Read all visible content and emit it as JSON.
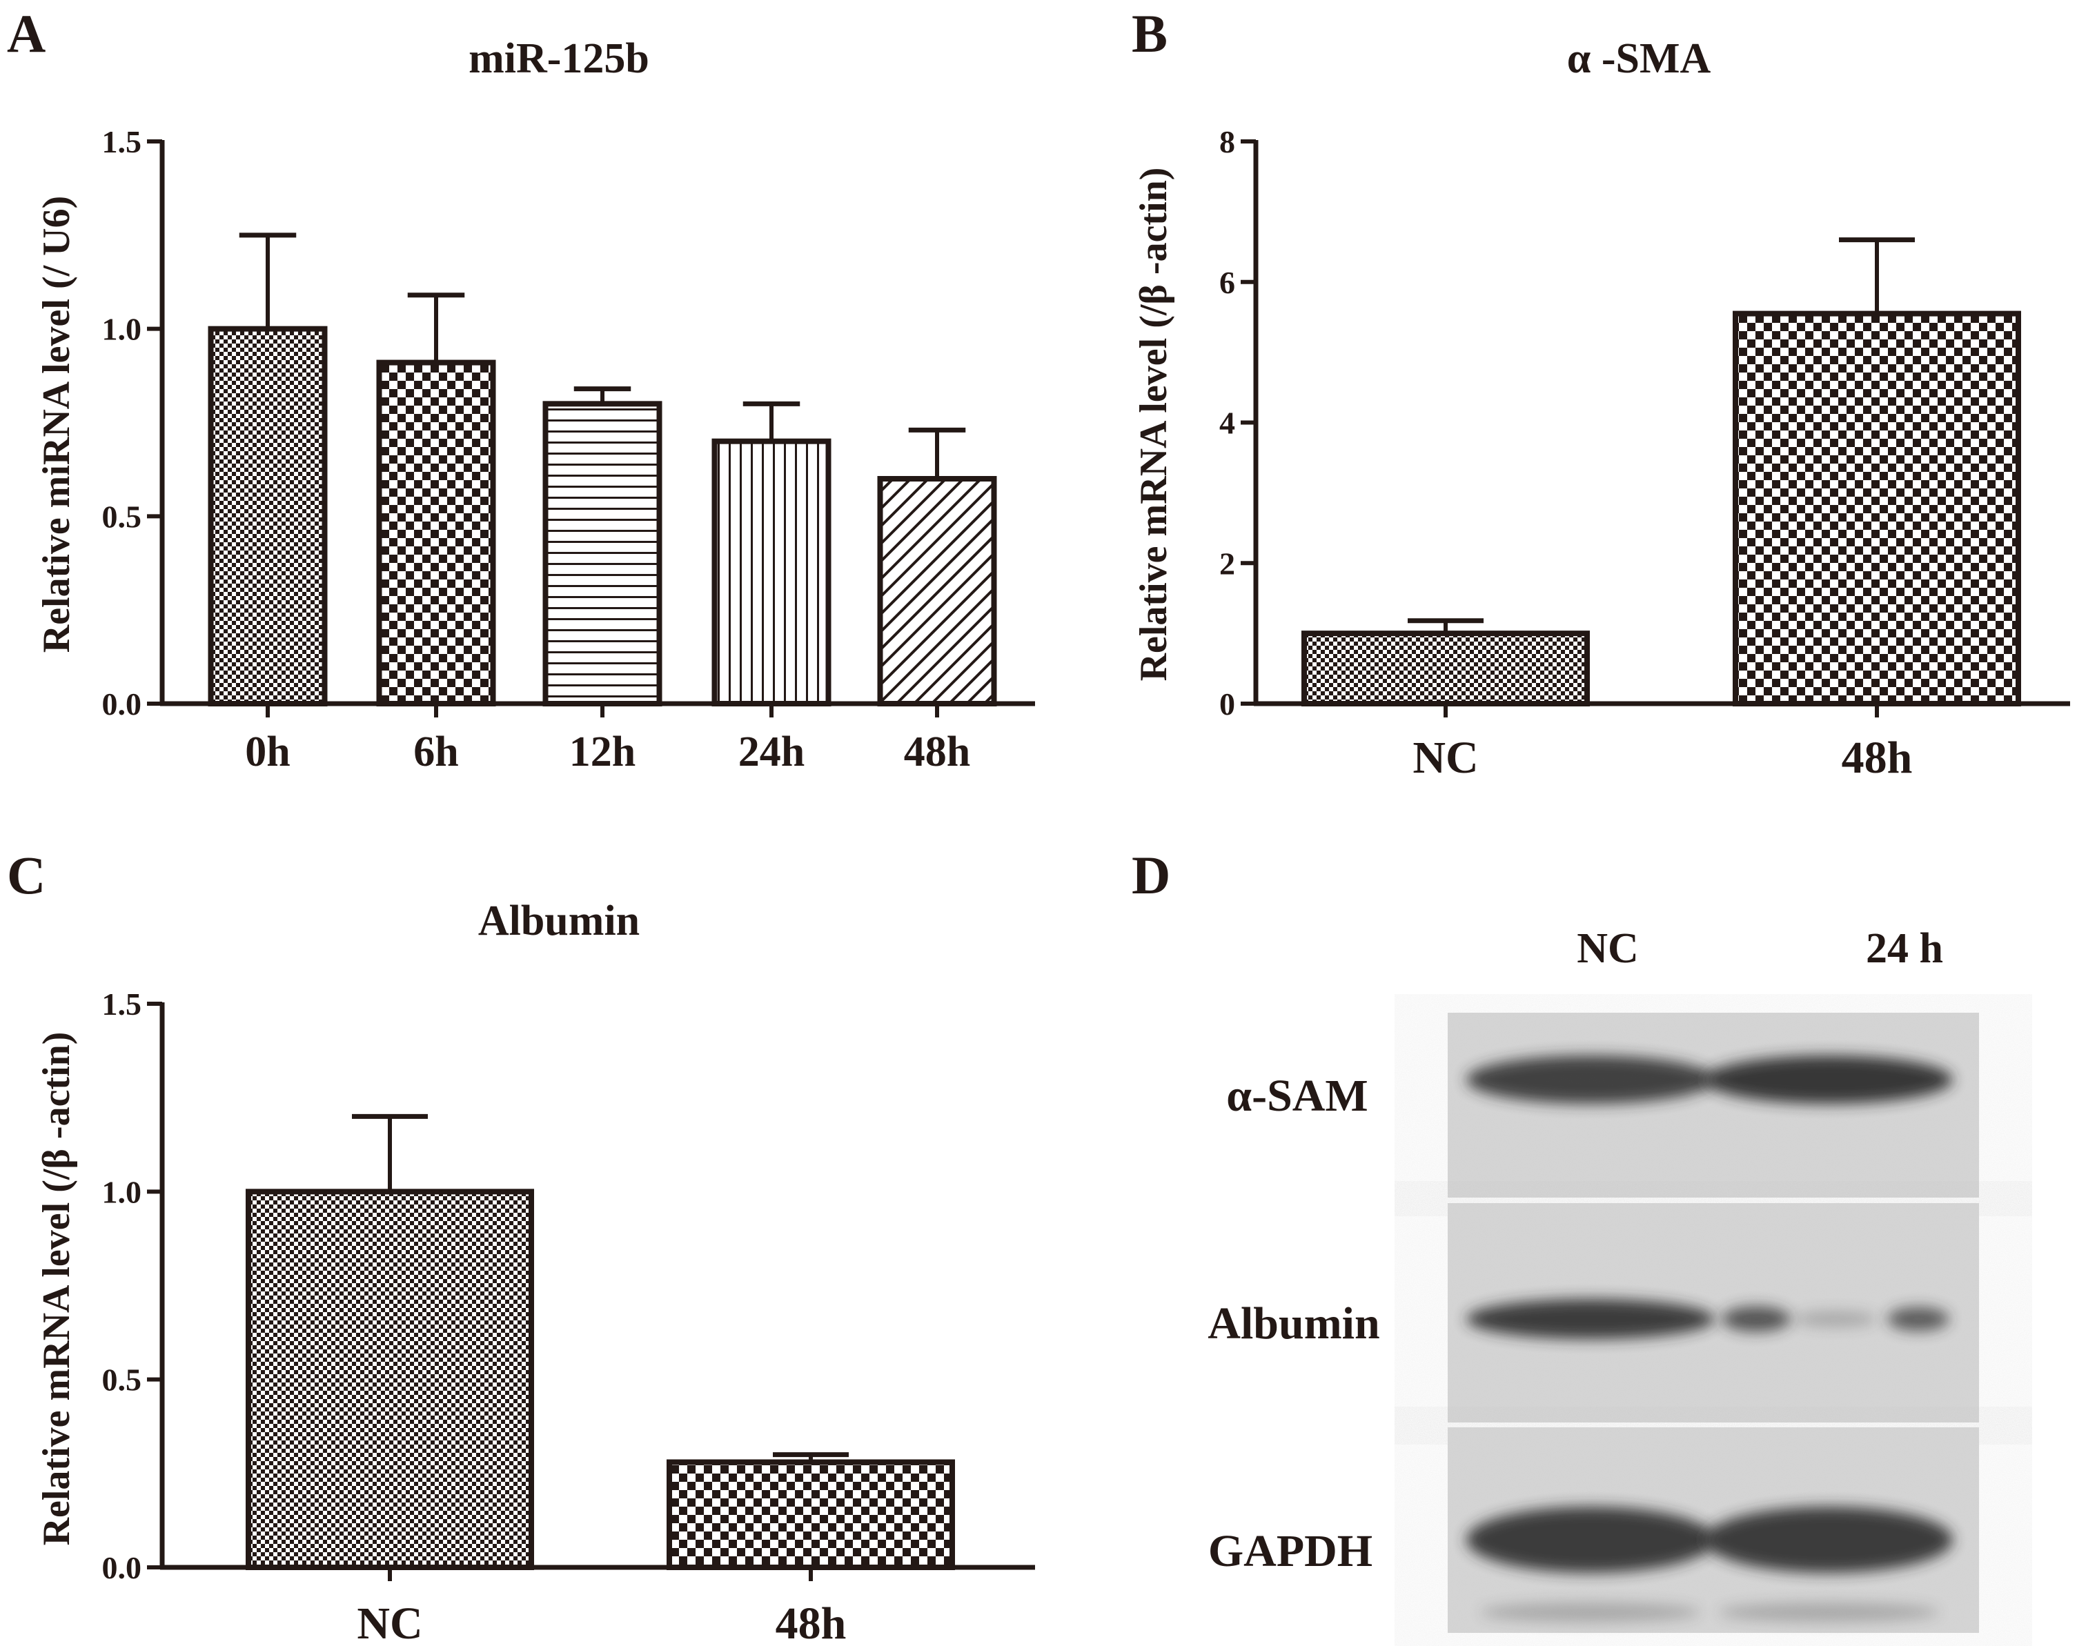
{
  "panels": {
    "A": "A",
    "B": "B",
    "C": "C",
    "D": "D"
  },
  "chart_data": [
    {
      "id": "A",
      "type": "bar",
      "title": "miR-125b",
      "xlabel": "",
      "ylabel": "Relative miRNA level (/ U6)",
      "categories": [
        "0h",
        "6h",
        "12h",
        "24h",
        "48h"
      ],
      "values": [
        1.0,
        0.91,
        0.8,
        0.7,
        0.6
      ],
      "errors": [
        0.25,
        0.18,
        0.04,
        0.1,
        0.13
      ],
      "patterns": [
        "fine-check",
        "coarse-check",
        "horizontal-lines",
        "vertical-lines",
        "diagonal-lines"
      ],
      "ylim": [
        0,
        1.5
      ],
      "yticks": [
        0.0,
        0.5,
        1.0,
        1.5
      ],
      "ytick_labels": [
        "0.0",
        "0.5",
        "1.0",
        "1.5"
      ],
      "grid": false
    },
    {
      "id": "B",
      "type": "bar",
      "title": "α -SMA",
      "xlabel": "",
      "ylabel": "Relative mRNA level (/β -actin)",
      "categories": [
        "NC",
        "48h"
      ],
      "values": [
        1.0,
        5.55
      ],
      "errors": [
        0.18,
        1.05
      ],
      "patterns": [
        "fine-check",
        "coarse-check"
      ],
      "ylim": [
        0,
        8
      ],
      "yticks": [
        0,
        2,
        4,
        6,
        8
      ],
      "ytick_labels": [
        "0",
        "2",
        "4",
        "6",
        "8"
      ],
      "grid": false
    },
    {
      "id": "C",
      "type": "bar",
      "title": "Albumin",
      "xlabel": "",
      "ylabel": "Relative mRNA level (/β -actin)",
      "categories": [
        "NC",
        "48h"
      ],
      "values": [
        1.0,
        0.28
      ],
      "errors": [
        0.2,
        0.02
      ],
      "patterns": [
        "fine-check",
        "coarse-check"
      ],
      "ylim": [
        0,
        1.5
      ],
      "yticks": [
        0.0,
        0.5,
        1.0,
        1.5
      ],
      "ytick_labels": [
        "0.0",
        "0.5",
        "1.0",
        "1.5"
      ],
      "grid": false
    }
  ],
  "blot": {
    "lanes": [
      "NC",
      "24 h"
    ],
    "rows": [
      {
        "label": "α-SAM",
        "intensity": [
          0.85,
          0.95
        ]
      },
      {
        "label": "Albumin",
        "intensity": [
          0.9,
          0.25
        ]
      },
      {
        "label": "GAPDH",
        "intensity": [
          0.9,
          0.9
        ]
      }
    ]
  },
  "colors": {
    "ink": "#231815",
    "membrane": "#d6d6d6",
    "band": "#2b2b2b"
  }
}
